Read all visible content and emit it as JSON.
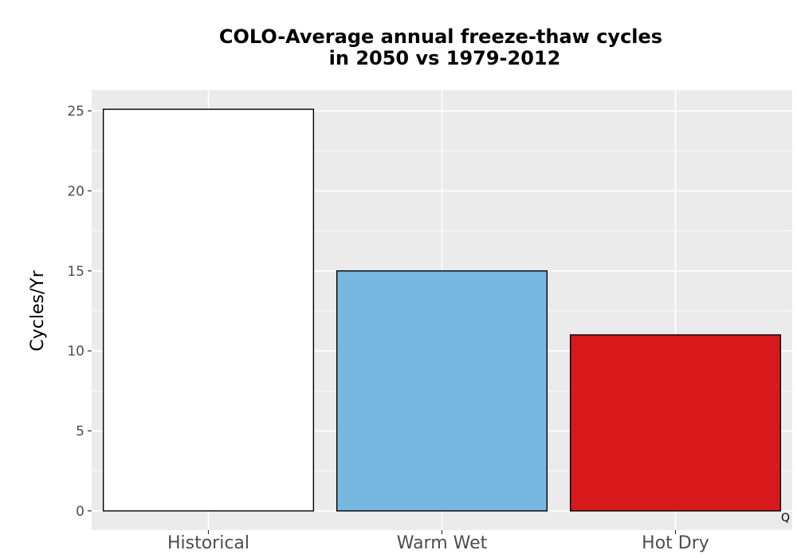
{
  "chart_data": {
    "type": "bar",
    "title": "COLO-Average annual freeze-thaw cycles",
    "subtitle": "in 2050 vs 1979-2012",
    "xlabel": "",
    "ylabel": "Cycles/Yr",
    "categories": [
      "Historical",
      "Warm Wet",
      "Hot Dry"
    ],
    "values": [
      25.1,
      15.0,
      11.0
    ],
    "colors": [
      "#ffffff",
      "#78b7e0",
      "#d7191c"
    ],
    "bar_outline_color": "#000000",
    "panel_background": "#ebebeb",
    "grid": true,
    "ylim": [
      -1.2,
      26.3
    ],
    "yticks": [
      0,
      5,
      10,
      15,
      20,
      25
    ],
    "corner_mark": "Q"
  }
}
